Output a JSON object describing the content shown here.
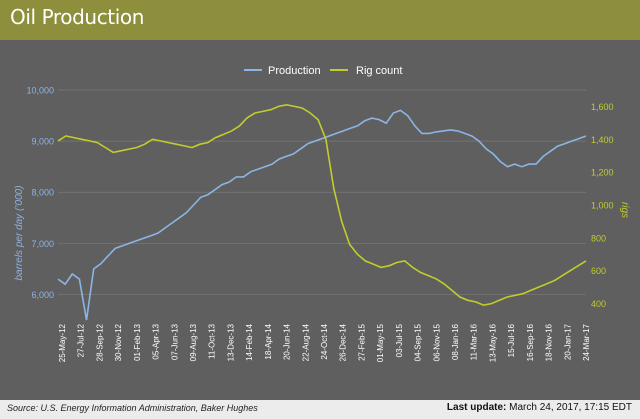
{
  "header": {
    "title": "Oil Production"
  },
  "footer": {
    "source": "Source: U.S. Energy Information Administration, Baker Hughes",
    "last_update_label": "Last update:",
    "last_update_value": "March 24, 2017, 17:15 EDT"
  },
  "colors": {
    "production": "#8cb4e4",
    "rig_count": "#c2cc2c",
    "header": "#8d8f3c",
    "panel": "#5f5f5f"
  },
  "chart_data": {
    "type": "line",
    "title": "",
    "legend_position": "top-center",
    "grid": true,
    "ylabel_left": "barrels per day (’000)",
    "ylabel_right": "rigs",
    "ylim_left": [
      5500,
      10000
    ],
    "ylim_right": [
      300,
      1700
    ],
    "yticks_left": [
      "6,000",
      "7,000",
      "8,000",
      "9,000",
      "10,000"
    ],
    "yticks_right": [
      "400",
      "600",
      "800",
      "1,000",
      "1,200",
      "1,400",
      "1,600"
    ],
    "x_tick_labels": [
      "25-May-12",
      "27-Jul-12",
      "28-Sep-12",
      "30-Nov-12",
      "01-Feb-13",
      "05-Apr-13",
      "07-Jun-13",
      "09-Aug-13",
      "11-Oct-13",
      "13-Dec-13",
      "14-Feb-14",
      "18-Apr-14",
      "20-Jun-14",
      "22-Aug-14",
      "24-Oct-14",
      "26-Dec-14",
      "27-Feb-15",
      "01-May-15",
      "03-Jul-15",
      "04-Sep-15",
      "06-Nov-15",
      "08-Jan-16",
      "11-Mar-16",
      "13-May-16",
      "15-Jul-16",
      "16-Sep-16",
      "18-Nov-16",
      "20-Jan-17",
      "24-Mar-17"
    ],
    "series": [
      {
        "name": "Production",
        "axis": "left",
        "values": [
          6300,
          6200,
          6400,
          6300,
          5500,
          6500,
          6600,
          6750,
          6900,
          6950,
          7000,
          7050,
          7100,
          7150,
          7200,
          7300,
          7400,
          7500,
          7600,
          7750,
          7900,
          7950,
          8050,
          8150,
          8200,
          8300,
          8300,
          8400,
          8450,
          8500,
          8550,
          8650,
          8700,
          8750,
          8850,
          8950,
          9000,
          9050,
          9100,
          9150,
          9200,
          9250,
          9300,
          9400,
          9450,
          9420,
          9350,
          9550,
          9600,
          9500,
          9300,
          9150,
          9150,
          9180,
          9200,
          9220,
          9200,
          9150,
          9100,
          9000,
          8850,
          8750,
          8600,
          8500,
          8550,
          8500,
          8550,
          8550,
          8700,
          8800,
          8900,
          8950,
          9000,
          9050,
          9100
        ]
      },
      {
        "name": "Rig count",
        "axis": "right",
        "values": [
          1390,
          1420,
          1410,
          1400,
          1390,
          1380,
          1350,
          1320,
          1330,
          1340,
          1350,
          1370,
          1400,
          1390,
          1380,
          1370,
          1360,
          1350,
          1370,
          1380,
          1410,
          1430,
          1450,
          1480,
          1530,
          1560,
          1570,
          1580,
          1600,
          1610,
          1600,
          1590,
          1560,
          1520,
          1400,
          1100,
          900,
          760,
          700,
          660,
          640,
          620,
          630,
          650,
          660,
          620,
          590,
          570,
          550,
          520,
          480,
          440,
          420,
          410,
          390,
          400,
          420,
          440,
          450,
          460,
          480,
          500,
          520,
          540,
          570,
          600,
          630,
          660
        ]
      }
    ]
  }
}
